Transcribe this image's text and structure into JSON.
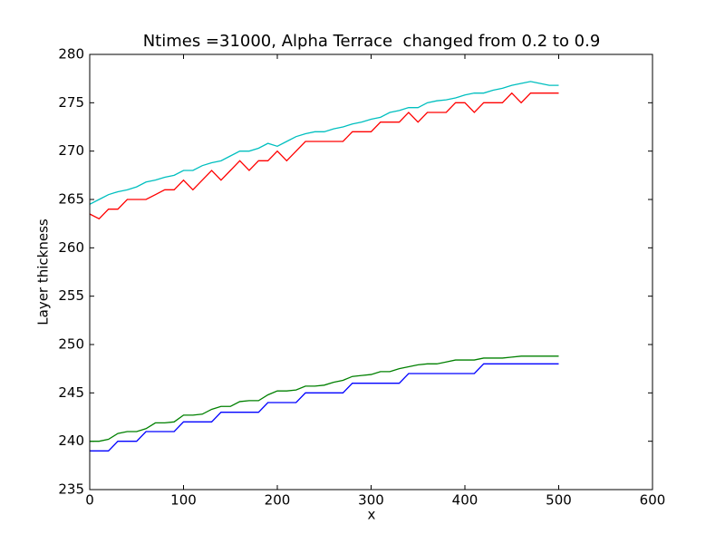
{
  "chart_data": {
    "type": "line",
    "title": "Ntimes =31000, Alpha Terrace  changed from 0.2 to 0.9",
    "xlabel": "x",
    "ylabel": "Layer thickness",
    "xlim": [
      0,
      600
    ],
    "xticks": [
      0,
      100,
      200,
      300,
      400,
      500,
      600
    ],
    "ylim": [
      235,
      280
    ],
    "yticks": [
      235,
      240,
      245,
      250,
      255,
      260,
      265,
      270,
      275,
      280
    ],
    "grid": false,
    "x": [
      0,
      10,
      20,
      30,
      40,
      50,
      60,
      70,
      80,
      90,
      100,
      110,
      120,
      130,
      140,
      150,
      160,
      170,
      180,
      190,
      200,
      210,
      220,
      230,
      240,
      250,
      260,
      270,
      280,
      290,
      300,
      310,
      320,
      330,
      340,
      350,
      360,
      370,
      380,
      390,
      400,
      410,
      420,
      430,
      440,
      450,
      460,
      470,
      480,
      490,
      500
    ],
    "series": [
      {
        "color": "#0000ff",
        "values": [
          239,
          239,
          239,
          240,
          240,
          240,
          241,
          241,
          241,
          241,
          242,
          242,
          242,
          242,
          243,
          243,
          243,
          243,
          243,
          244,
          244,
          244,
          244,
          245,
          245,
          245,
          245,
          245,
          246,
          246,
          246,
          246,
          246,
          246,
          247,
          247,
          247,
          247,
          247,
          247,
          247,
          247,
          248,
          248,
          248,
          248,
          248,
          248,
          248,
          248,
          248
        ]
      },
      {
        "color": "#008000",
        "values": [
          240,
          240,
          240.2,
          240.8,
          241,
          241,
          241.3,
          241.9,
          241.9,
          242,
          242.7,
          242.7,
          242.8,
          243.3,
          243.6,
          243.6,
          244.1,
          244.2,
          244.2,
          244.8,
          245.2,
          245.2,
          245.3,
          245.7,
          245.7,
          245.8,
          246.1,
          246.3,
          246.7,
          246.8,
          246.9,
          247.2,
          247.2,
          247.5,
          247.7,
          247.9,
          248,
          248,
          248.2,
          248.4,
          248.4,
          248.4,
          248.6,
          248.6,
          248.6,
          248.7,
          248.8,
          248.8,
          248.8,
          248.8,
          248.8
        ]
      },
      {
        "color": "#ff0000",
        "values": [
          263.5,
          263,
          264,
          264,
          265,
          265,
          265,
          265.5,
          266,
          266,
          267,
          266,
          267,
          268,
          267,
          268,
          269,
          268,
          269,
          269,
          270,
          269,
          270,
          271,
          271,
          271,
          271,
          271,
          272,
          272,
          272,
          273,
          273,
          273,
          274,
          273,
          274,
          274,
          274,
          275,
          275,
          274,
          275,
          275,
          275,
          276,
          275,
          276,
          276,
          276,
          276
        ]
      },
      {
        "color": "#00bfbf",
        "values": [
          264.5,
          265,
          265.5,
          265.8,
          266,
          266.3,
          266.8,
          267,
          267.3,
          267.5,
          268,
          268,
          268.5,
          268.8,
          269,
          269.5,
          270,
          270,
          270.3,
          270.8,
          270.5,
          271,
          271.5,
          271.8,
          272,
          272,
          272.3,
          272.5,
          272.8,
          273,
          273.3,
          273.5,
          274,
          274.2,
          274.5,
          274.5,
          275,
          275.2,
          275.3,
          275.5,
          275.8,
          276,
          276,
          276.3,
          276.5,
          276.8,
          277,
          277.2,
          277,
          276.8,
          276.8
        ]
      }
    ]
  }
}
